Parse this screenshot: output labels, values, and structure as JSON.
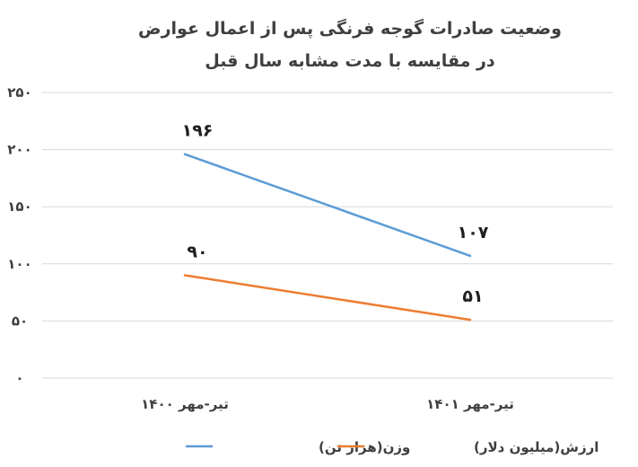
{
  "chart_data": {
    "type": "line",
    "title": "وضعیت صادرات گوجه فرنگی پس از اعمال عوارض در مقایسه با مدت مشابه سال قبل",
    "categories": [
      "تیر-مهر ۱۴۰۰",
      "تیر-مهر ۱۴۰۱"
    ],
    "y_ticks": [
      "۰",
      "۵۰",
      "۱۰۰",
      "۱۵۰",
      "۲۰۰",
      "۲۵۰"
    ],
    "ylim": [
      0,
      250
    ],
    "grid": true,
    "legend_position": "bottom",
    "series": [
      {
        "name": "وزن(هزار تن)",
        "values": [
          196,
          107
        ],
        "value_labels": [
          "۱۹۶",
          "۱۰۷"
        ],
        "color": "#5b9bd5"
      },
      {
        "name": "ارزش(میلیون دلار)",
        "values": [
          90,
          51
        ],
        "value_labels": [
          "۹۰",
          "۵۱"
        ],
        "color": "#ed7d31"
      }
    ]
  }
}
